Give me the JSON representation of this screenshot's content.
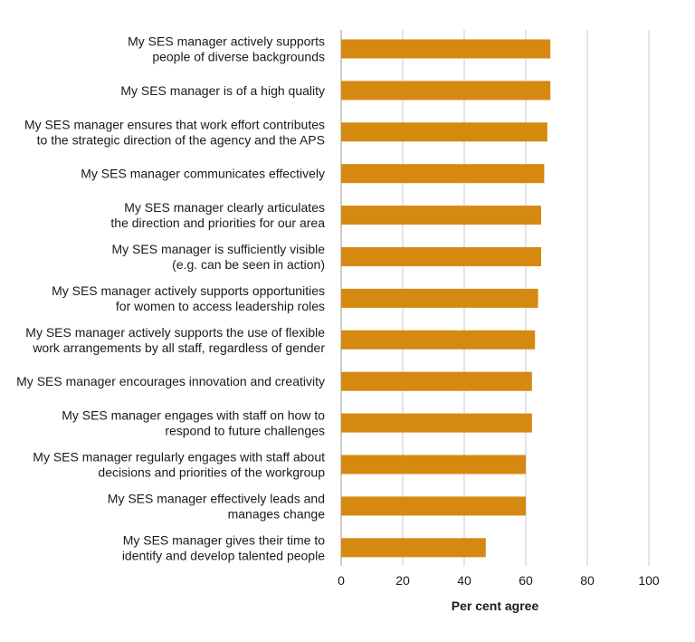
{
  "chart_data": {
    "type": "bar",
    "orientation": "horizontal",
    "title": "",
    "xlabel": "Per cent agree",
    "ylabel": "",
    "xlim": [
      0,
      100
    ],
    "xticks": [
      0,
      20,
      40,
      60,
      80,
      100
    ],
    "grid": true,
    "bar_color": "#d68910",
    "categories": [
      [
        "My SES manager actively supports",
        "people of diverse backgrounds"
      ],
      [
        "My SES manager is of a high quality"
      ],
      [
        "My SES manager ensures that work effort contributes",
        "to the strategic direction of the agency and the APS"
      ],
      [
        "My SES manager communicates effectively"
      ],
      [
        "My SES manager clearly articulates",
        "the direction and priorities for our area"
      ],
      [
        "My SES manager is sufficiently visible",
        "(e.g. can be seen in action)"
      ],
      [
        "My SES manager actively supports opportunities",
        "for women to access leadership roles"
      ],
      [
        "My SES manager actively supports the use of flexible",
        "work arrangements by all staff, regardless of gender"
      ],
      [
        "My SES manager encourages innovation and creativity"
      ],
      [
        "My SES manager engages with staff on how to",
        "respond to future challenges"
      ],
      [
        "My SES manager regularly engages with staff about",
        "decisions and priorities of the workgroup"
      ],
      [
        "My SES manager effectively leads and",
        "manages change"
      ],
      [
        "My SES manager gives their time to",
        "identify and develop talented people"
      ]
    ],
    "values": [
      68,
      68,
      67,
      66,
      65,
      65,
      64,
      63,
      62,
      62,
      60,
      60,
      47
    ]
  }
}
